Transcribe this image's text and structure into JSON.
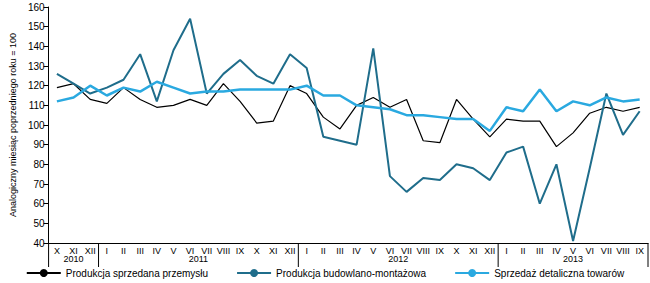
{
  "chart_data": {
    "type": "line",
    "y_label": "Analogiczny miesiąc poprzedniego roku = 100",
    "categories": [
      "X",
      "XI",
      "XII",
      "I",
      "II",
      "III",
      "IV",
      "V",
      "VI",
      "VII",
      "VIII",
      "IX",
      "X",
      "XI",
      "XII",
      "I",
      "II",
      "III",
      "IV",
      "V",
      "VI",
      "VII",
      "VIII",
      "IX",
      "X",
      "XI",
      "XII",
      "I",
      "II",
      "III",
      "IV",
      "V",
      "VI",
      "VII",
      "VIII",
      "IX"
    ],
    "years": [
      "2010",
      "2010",
      "2010",
      "2011",
      "2011",
      "2011",
      "2011",
      "2011",
      "2011",
      "2011",
      "2011",
      "2011",
      "2011",
      "2011",
      "2011",
      "2012",
      "2012",
      "2012",
      "2012",
      "2012",
      "2012",
      "2012",
      "2012",
      "2012",
      "2012",
      "2012",
      "2012",
      "2013",
      "2013",
      "2013",
      "2013",
      "2013",
      "2013",
      "2013",
      "2013",
      "2013"
    ],
    "series": [
      {
        "name": "Produkcja sprzedana przemysłu",
        "color": "#000000",
        "values": [
          119,
          121,
          113,
          111,
          119,
          113,
          109,
          110,
          113,
          110,
          121,
          112,
          101,
          102,
          120,
          116,
          104,
          98,
          110,
          114,
          109,
          113,
          92,
          91,
          113,
          103,
          94,
          103,
          102,
          102,
          89,
          96,
          106,
          109,
          107,
          109
        ]
      },
      {
        "name": "Produkcja budowlano-montażowa",
        "color": "#1f6d8b",
        "values": [
          126,
          121,
          116,
          119,
          123,
          136,
          112,
          138,
          154,
          116,
          126,
          133,
          125,
          121,
          136,
          129,
          94,
          92,
          90,
          139,
          74,
          66,
          73,
          72,
          80,
          78,
          72,
          86,
          89,
          60,
          80,
          41,
          78,
          116,
          95,
          107
        ]
      },
      {
        "name": "Sprzedaż detaliczna towarów",
        "color": "#2aa9e0",
        "values": [
          112,
          114,
          120,
          115,
          119,
          117,
          122,
          119,
          116,
          117,
          117,
          118,
          118,
          118,
          118,
          120,
          115,
          115,
          110,
          109,
          108,
          105,
          105,
          104,
          103,
          103,
          97,
          109,
          107,
          118,
          107,
          112,
          110,
          114,
          112,
          113
        ]
      }
    ],
    "ylim": [
      40,
      160
    ],
    "yticks": [
      40,
      50,
      60,
      70,
      80,
      90,
      100,
      110,
      120,
      130,
      140,
      150,
      160
    ],
    "grid": false,
    "legend": "bottom"
  }
}
